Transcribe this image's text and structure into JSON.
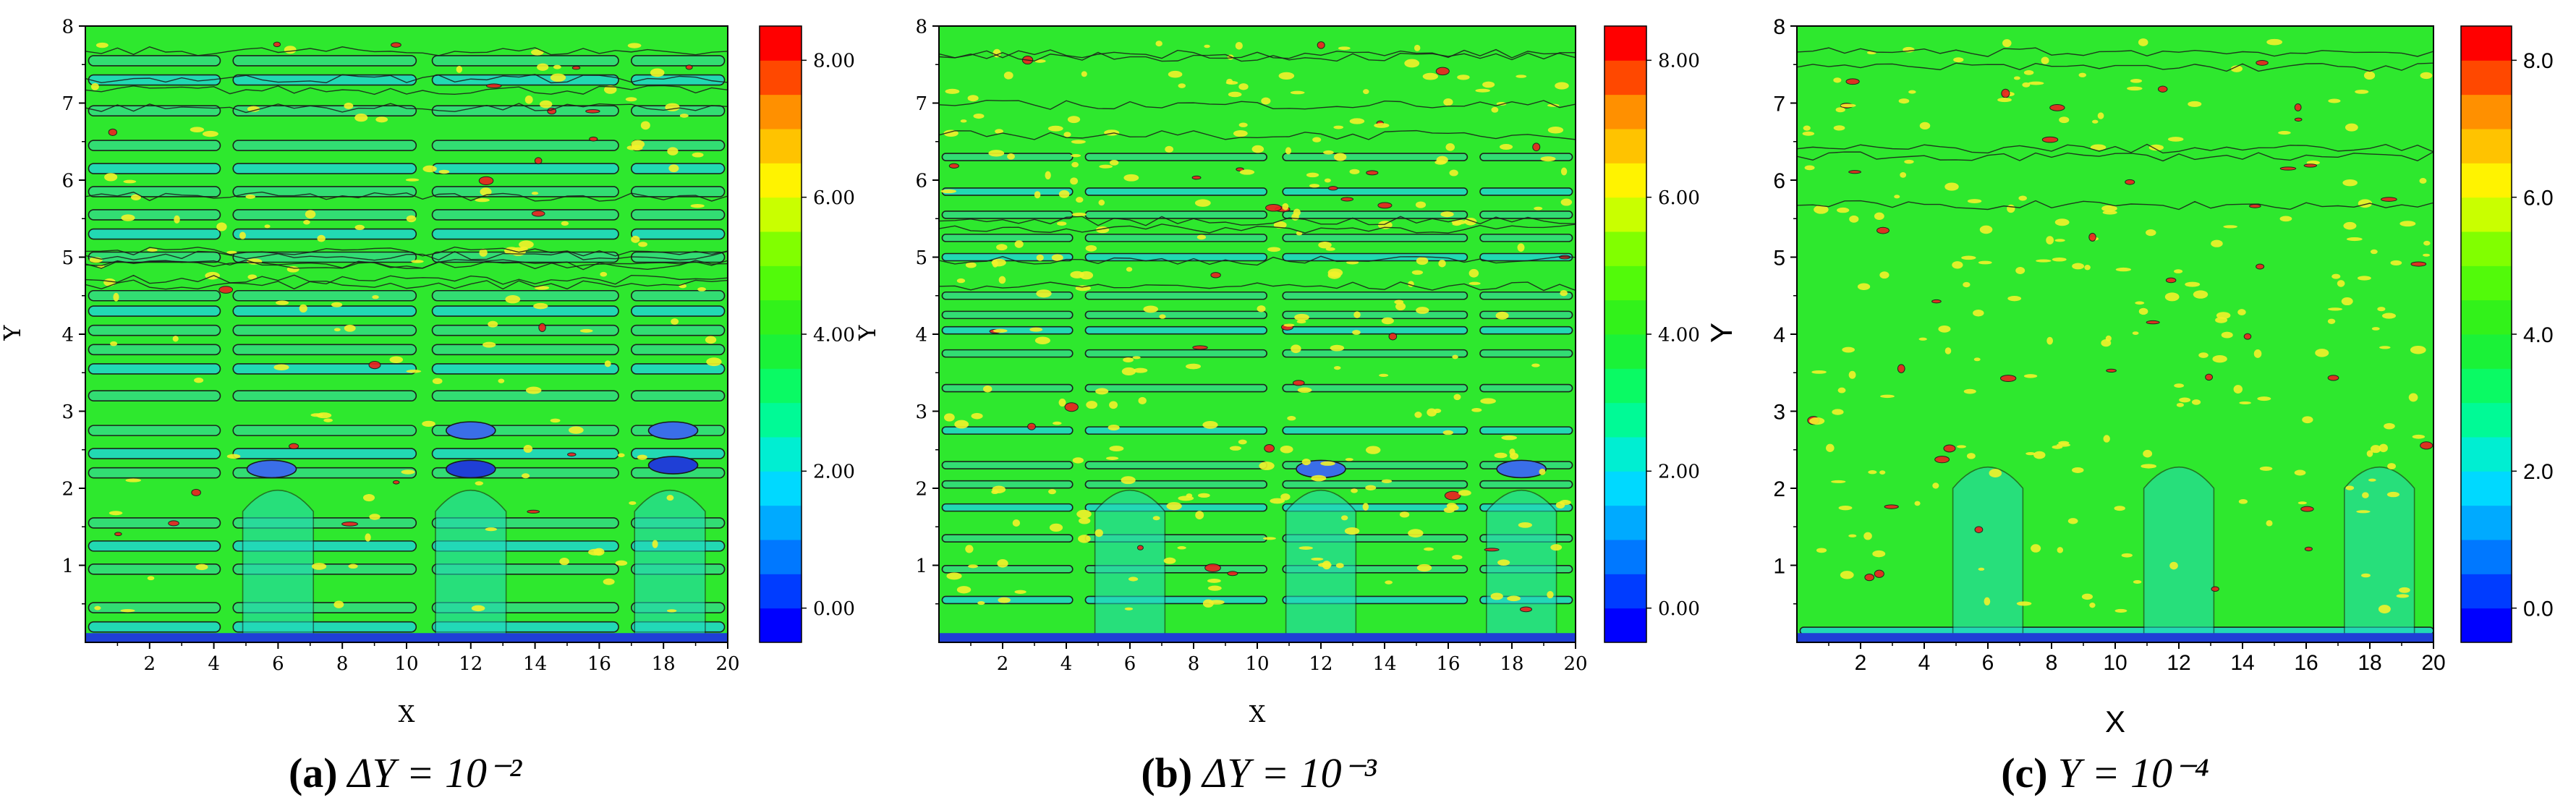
{
  "figure": {
    "panels": [
      {
        "letter": "(a)",
        "eq": "ΔY = 10⁻²"
      },
      {
        "letter": "(b)",
        "eq": "ΔY = 10⁻³"
      },
      {
        "letter": "(c)",
        "eq": "Y = 10⁻⁴"
      }
    ]
  },
  "colors": {
    "field": "#2ee82e",
    "band_light": "#33dd77",
    "band_cyan": "#22d9bb",
    "band_blue": "#3a6ee8",
    "deep_blue": "#1f3fd6",
    "yellow": "#f2f22a",
    "red": "#ee2020",
    "contour": "#1a1a1a",
    "colorbar_stops": [
      "#0000ff",
      "#0080ff",
      "#00e5ff",
      "#00ff80",
      "#22ee22",
      "#66ff00",
      "#ffff00",
      "#ff9900",
      "#ff0000"
    ]
  },
  "chart_data": [
    {
      "type": "heatmap",
      "title": "(a) ΔY = 10⁻²",
      "xlabel": "X",
      "ylabel": "Y",
      "xlim": [
        0,
        20
      ],
      "ylim": [
        0,
        8
      ],
      "xticks": [
        "2",
        "4",
        "6",
        "8",
        "10",
        "12",
        "14",
        "16",
        "18",
        "20"
      ],
      "yticks": [
        "1",
        "2",
        "3",
        "4",
        "5",
        "6",
        "7",
        "8"
      ],
      "colorbar": {
        "range": [
          -0.5,
          8.5
        ],
        "ticks": [
          0,
          2,
          4,
          6,
          8
        ],
        "labels": [
          "0.00",
          "2.00",
          "4.00",
          "6.00",
          "8.00"
        ]
      },
      "horizontal_bands_y": [
        0.2,
        0.45,
        0.95,
        1.25,
        1.55,
        2.2,
        2.45,
        2.75,
        3.2,
        3.55,
        3.8,
        4.05,
        4.3,
        4.5,
        5.0,
        5.3,
        5.55,
        5.85,
        6.15,
        6.45,
        6.9,
        7.3,
        7.55
      ],
      "blue_blobs": [
        {
          "x": 5.8,
          "y": 2.25,
          "v": 1.4
        },
        {
          "x": 12.0,
          "y": 2.25,
          "v": 0.9
        },
        {
          "x": 18.3,
          "y": 2.3,
          "v": 0.9
        },
        {
          "x": 12.0,
          "y": 2.75,
          "v": 1.6
        },
        {
          "x": 18.3,
          "y": 2.75,
          "v": 1.6
        }
      ],
      "cyan_columns_x": [
        6.0,
        12.0,
        18.2
      ]
    },
    {
      "type": "heatmap",
      "title": "(b) ΔY = 10⁻³",
      "xlabel": "X",
      "ylabel": "Y",
      "xlim": [
        0,
        20
      ],
      "ylim": [
        0,
        8
      ],
      "xticks": [
        "2",
        "4",
        "6",
        "8",
        "10",
        "12",
        "14",
        "16",
        "18",
        "20"
      ],
      "yticks": [
        "1",
        "2",
        "3",
        "4",
        "5",
        "6",
        "7",
        "8"
      ],
      "colorbar": {
        "range": [
          -0.5,
          8.5
        ],
        "ticks": [
          0,
          2,
          4,
          6,
          8
        ],
        "labels": [
          "0.00",
          "2.00",
          "4.00",
          "6.00",
          "8.00"
        ]
      },
      "horizontal_bands_y": [
        0.55,
        0.95,
        1.35,
        1.75,
        2.05,
        2.3,
        2.75,
        3.3,
        3.75,
        4.05,
        4.25,
        4.5,
        5.0,
        5.25,
        5.55,
        5.85,
        6.3
      ],
      "blue_blobs": [
        {
          "x": 12.0,
          "y": 2.25,
          "v": 1.3
        },
        {
          "x": 18.3,
          "y": 2.25,
          "v": 1.3
        }
      ],
      "cyan_columns_x": [
        6.0,
        12.0,
        18.3
      ]
    },
    {
      "type": "heatmap",
      "title": "(c) Y = 10⁻⁴",
      "xlabel": "X",
      "ylabel": "Y",
      "xlim": [
        0,
        20
      ],
      "ylim": [
        0,
        8
      ],
      "xticks": [
        "2",
        "4",
        "6",
        "8",
        "10",
        "12",
        "14",
        "16",
        "18",
        "20"
      ],
      "yticks": [
        "1",
        "2",
        "3",
        "4",
        "5",
        "6",
        "7",
        "8"
      ],
      "colorbar": {
        "range": [
          -0.5,
          8.5
        ],
        "ticks": [
          0,
          2,
          4,
          6,
          8
        ],
        "labels": [
          "0.0",
          "2.0",
          "4.0",
          "6.0",
          "8.0"
        ]
      },
      "horizontal_bands_y": [
        0.15
      ],
      "blue_blobs": [],
      "cyan_columns_x": [
        6.0,
        12.0,
        18.3
      ]
    }
  ]
}
